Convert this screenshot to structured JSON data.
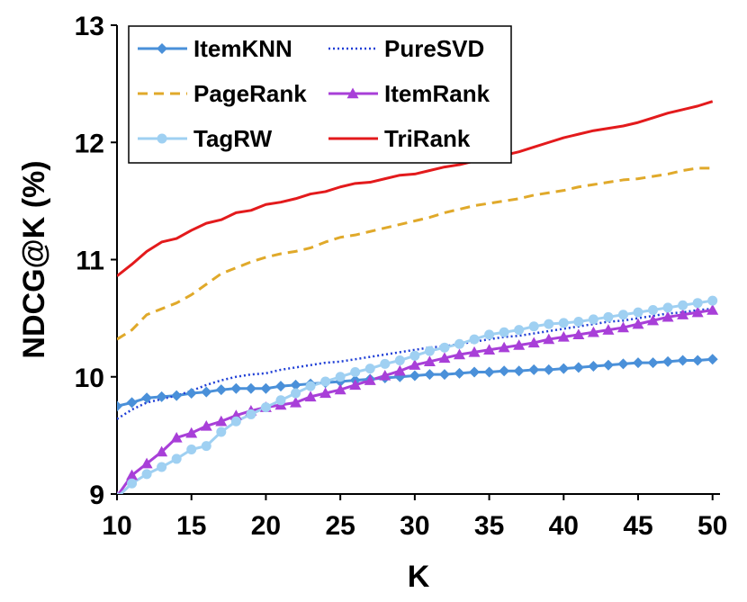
{
  "chart_data": {
    "type": "line",
    "title": "",
    "xlabel": "K",
    "ylabel": "NDCG@K (%)",
    "xlim": [
      10,
      50.5
    ],
    "ylim": [
      9,
      13
    ],
    "xticks": [
      10,
      15,
      20,
      25,
      30,
      35,
      40,
      45,
      50
    ],
    "yticks": [
      9,
      10,
      11,
      12,
      13
    ],
    "legend_position": "top-left",
    "x": [
      10,
      11,
      12,
      13,
      14,
      15,
      16,
      17,
      18,
      19,
      20,
      21,
      22,
      23,
      24,
      25,
      26,
      27,
      28,
      29,
      30,
      31,
      32,
      33,
      34,
      35,
      36,
      37,
      38,
      39,
      40,
      41,
      42,
      43,
      44,
      45,
      46,
      47,
      48,
      49,
      50
    ],
    "series": [
      {
        "name": "ItemKNN",
        "color": "#4a90d9",
        "style": "solid",
        "marker": "diamond",
        "values": [
          9.75,
          9.78,
          9.82,
          9.83,
          9.84,
          9.86,
          9.87,
          9.89,
          9.9,
          9.9,
          9.9,
          9.92,
          9.93,
          9.94,
          9.95,
          9.96,
          9.97,
          9.98,
          9.99,
          10.0,
          10.01,
          10.02,
          10.02,
          10.03,
          10.04,
          10.04,
          10.05,
          10.05,
          10.06,
          10.06,
          10.07,
          10.08,
          10.09,
          10.1,
          10.11,
          10.12,
          10.12,
          10.13,
          10.14,
          10.14,
          10.15
        ]
      },
      {
        "name": "PureSVD",
        "color": "#1f3fd6",
        "style": "dotted",
        "marker": "none",
        "values": [
          9.64,
          9.72,
          9.78,
          9.81,
          9.84,
          9.88,
          9.93,
          9.97,
          10.0,
          10.02,
          10.03,
          10.06,
          10.08,
          10.1,
          10.12,
          10.13,
          10.15,
          10.17,
          10.19,
          10.21,
          10.23,
          10.25,
          10.26,
          10.28,
          10.3,
          10.32,
          10.34,
          10.35,
          10.37,
          10.39,
          10.41,
          10.43,
          10.45,
          10.47,
          10.48,
          10.5,
          10.52,
          10.54,
          10.55,
          10.57,
          10.58
        ]
      },
      {
        "name": "PageRank",
        "color": "#e0a92a",
        "style": "dashed",
        "marker": "none",
        "values": [
          10.32,
          10.4,
          10.53,
          10.58,
          10.63,
          10.7,
          10.79,
          10.88,
          10.93,
          10.98,
          11.02,
          11.05,
          11.07,
          11.1,
          11.15,
          11.19,
          11.21,
          11.24,
          11.27,
          11.3,
          11.33,
          11.36,
          11.4,
          11.43,
          11.46,
          11.48,
          11.5,
          11.52,
          11.55,
          11.57,
          11.59,
          11.62,
          11.64,
          11.66,
          11.68,
          11.69,
          11.71,
          11.73,
          11.76,
          11.78,
          11.78
        ]
      },
      {
        "name": "ItemRank",
        "color": "#a83fd8",
        "style": "solid",
        "marker": "triangle",
        "values": [
          8.98,
          9.16,
          9.26,
          9.36,
          9.48,
          9.52,
          9.58,
          9.62,
          9.67,
          9.71,
          9.74,
          9.76,
          9.78,
          9.83,
          9.86,
          9.89,
          9.93,
          9.97,
          10.01,
          10.05,
          10.1,
          10.13,
          10.16,
          10.19,
          10.21,
          10.23,
          10.25,
          10.27,
          10.29,
          10.32,
          10.34,
          10.36,
          10.38,
          10.4,
          10.42,
          10.45,
          10.48,
          10.51,
          10.53,
          10.55,
          10.57
        ]
      },
      {
        "name": "TagRW",
        "color": "#9fd0f2",
        "style": "solid",
        "marker": "circle",
        "values": [
          8.97,
          9.09,
          9.17,
          9.23,
          9.3,
          9.38,
          9.41,
          9.53,
          9.62,
          9.68,
          9.74,
          9.8,
          9.86,
          9.92,
          9.96,
          10.0,
          10.04,
          10.07,
          10.11,
          10.14,
          10.18,
          10.22,
          10.25,
          10.28,
          10.32,
          10.36,
          10.38,
          10.4,
          10.43,
          10.45,
          10.46,
          10.47,
          10.49,
          10.51,
          10.53,
          10.55,
          10.57,
          10.59,
          10.61,
          10.63,
          10.65
        ]
      },
      {
        "name": "TriRank",
        "color": "#e31a1c",
        "style": "solid",
        "marker": "none",
        "values": [
          10.86,
          10.96,
          11.07,
          11.15,
          11.18,
          11.25,
          11.31,
          11.34,
          11.4,
          11.42,
          11.47,
          11.49,
          11.52,
          11.56,
          11.58,
          11.62,
          11.65,
          11.66,
          11.69,
          11.72,
          11.73,
          11.76,
          11.79,
          11.81,
          11.84,
          11.86,
          11.89,
          11.92,
          11.96,
          12.0,
          12.04,
          12.07,
          12.1,
          12.12,
          12.14,
          12.17,
          12.21,
          12.25,
          12.28,
          12.31,
          12.35
        ]
      }
    ]
  }
}
